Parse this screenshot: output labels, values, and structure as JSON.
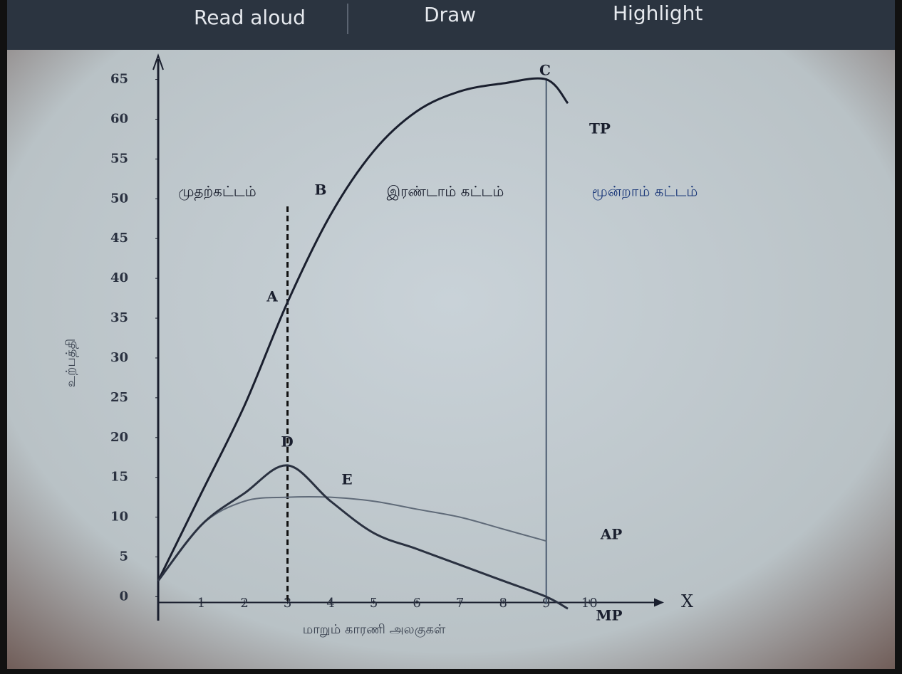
{
  "toolbar": {
    "items": [
      "Read aloud",
      "Draw",
      "Highlight"
    ]
  },
  "chart_data": {
    "type": "line",
    "x": [
      0,
      1,
      2,
      3,
      4,
      5,
      6,
      7,
      8,
      9,
      9.5
    ],
    "series": [
      {
        "name": "TP",
        "color": "#1a1f2e",
        "values": [
          2,
          13,
          24,
          37,
          48,
          56,
          61,
          63.5,
          64.5,
          65,
          62
        ]
      },
      {
        "name": "AP",
        "color": "#5f6a78",
        "values": [
          2,
          9,
          12,
          12.5,
          12.5,
          12,
          11,
          10,
          8.5,
          7,
          null
        ]
      },
      {
        "name": "MP",
        "color": "#2a3140",
        "values": [
          2,
          9,
          13,
          16.5,
          12,
          8,
          6,
          4,
          2,
          0,
          -1.5
        ]
      }
    ],
    "xlim": [
      0,
      11.5
    ],
    "ylim": [
      -3,
      68
    ],
    "xticks": [
      1,
      2,
      3,
      4,
      5,
      6,
      7,
      8,
      9,
      10
    ],
    "yticks": [
      0,
      5,
      10,
      15,
      20,
      25,
      30,
      35,
      40,
      45,
      50,
      55,
      60,
      65
    ],
    "x_axis_letter": "X",
    "x_label": "மாறும் காரணி அலகுகள்",
    "y_label": "உற்பத்தி",
    "vlines": [
      {
        "x": 3,
        "style": "dashed"
      },
      {
        "x": 9,
        "style": "solid"
      }
    ],
    "point_labels": [
      "A",
      "B",
      "C",
      "D",
      "E"
    ],
    "stages": [
      "முதற்கட்டம்",
      "இரண்டாம் கட்டம்",
      "மூன்றாம் கட்டம்"
    ]
  }
}
